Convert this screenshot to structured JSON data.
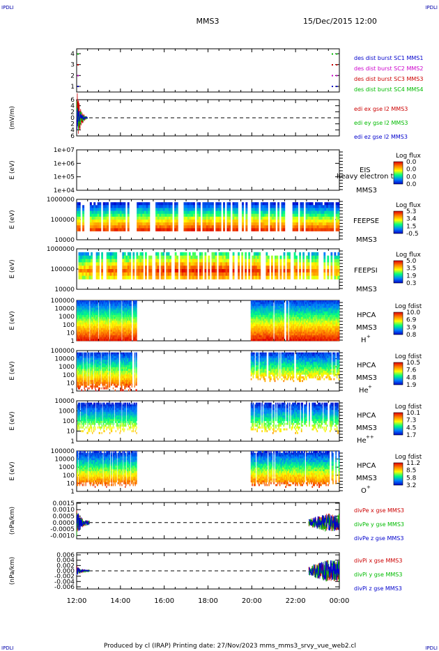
{
  "header": {
    "corner_tl": "IPDLI",
    "corner_tr": "IPDLI",
    "corner_bl": "IPDLI",
    "corner_br": "IPDLI",
    "spacecraft": "MMS3",
    "datetime": "15/Dec/2015 12:00"
  },
  "footer": {
    "text": "Produced by cl (IRAP)   Printing date: 27/Nov/2023   mms_mms3_srvy_vue_web2.cl"
  },
  "colors": {
    "mms1": "#0000cc",
    "mms2": "#cc00cc",
    "mms3": "#cc0000",
    "mms4": "#00bb00",
    "x": "#cc0000",
    "y": "#00bb00",
    "z": "#0000cc"
  },
  "chart_data": [
    {
      "type": "scatter",
      "panel": "des-dist-burst",
      "ylim": [
        0.5,
        4.5
      ],
      "yticks": [
        "1",
        "2",
        "3",
        "4"
      ],
      "legend": [
        "des dist burst SC1 MMS1",
        "des dist burst SC2 MMS2",
        "des dist burst SC3 MMS3",
        "des dist burst SC4 MMS4"
      ],
      "series": [
        {
          "name": "des dist burst SC1 MMS1",
          "y": 1,
          "x_hours": [
            12.03,
            23.65,
            23.85
          ]
        },
        {
          "name": "des dist burst SC2 MMS2",
          "y": 2,
          "x_hours": [
            12.03,
            23.65,
            23.85
          ]
        },
        {
          "name": "des dist burst SC3 MMS3",
          "y": 3,
          "x_hours": [
            12.03,
            23.65,
            23.85
          ]
        },
        {
          "name": "des dist burst SC4 MMS4",
          "y": 4,
          "x_hours": [
            12.03,
            23.65,
            23.85
          ]
        }
      ]
    },
    {
      "type": "line",
      "panel": "edi-e",
      "ylabel": "(mV/m)",
      "ylim": [
        -6,
        6
      ],
      "yticks": [
        "6",
        "4",
        "2",
        "0",
        "2",
        "4",
        "6"
      ],
      "legend": [
        "edi ex gse l2 MMS3",
        "edi ey gse l2 MMS3",
        "edi ez gse l2 MMS3"
      ],
      "x_range_hours": [
        12.0,
        12.5
      ],
      "amplitude": {
        "ex": 5.5,
        "ey": 4.5,
        "ez": 2.5
      }
    },
    {
      "type": "heatmap",
      "panel": "eis",
      "ylabel": "E (eV)",
      "yticks": [
        "1e+07",
        "1e+06",
        "1e+05",
        "1e+04"
      ],
      "labels": [
        "EIS",
        "heavy electron to",
        "MMS3"
      ],
      "colorbar": {
        "title": "Log flux",
        "ticks": [
          "0.0",
          "0.0",
          "0.0",
          "0.0"
        ]
      }
    },
    {
      "type": "heatmap",
      "panel": "feeps-e",
      "ylabel": "E (eV)",
      "yticks": [
        "1000000",
        "100000",
        "10000"
      ],
      "labels": [
        "FEEPSE",
        "MMS3"
      ],
      "colorbar": {
        "title": "Log flux",
        "ticks": [
          "5.3",
          "3.4",
          "1.5",
          "-0.5"
        ]
      },
      "x_range_hours": [
        12.0,
        24.0
      ]
    },
    {
      "type": "heatmap",
      "panel": "feeps-i",
      "ylabel": "E (eV)",
      "yticks": [
        "1000000",
        "100000",
        "10000"
      ],
      "labels": [
        "FEEPSI",
        "MMS3"
      ],
      "colorbar": {
        "title": "Log flux",
        "ticks": [
          "5.0",
          "3.5",
          "1.9",
          "0.3"
        ]
      },
      "x_range_hours": [
        12.0,
        24.0
      ]
    },
    {
      "type": "heatmap",
      "panel": "hpca-h",
      "ylabel": "E (eV)",
      "yticks": [
        "100000",
        "10000",
        "1000",
        "100",
        "10",
        "1"
      ],
      "labels": [
        "HPCA",
        "MMS3",
        "H",
        "+"
      ],
      "colorbar": {
        "title": "Log fdist",
        "ticks": [
          "10.0",
          "6.9",
          "3.9",
          "0.8"
        ]
      },
      "intervals_hours": [
        [
          12.0,
          14.75
        ],
        [
          19.95,
          24.0
        ]
      ]
    },
    {
      "type": "heatmap",
      "panel": "hpca-he",
      "ylabel": "E (eV)",
      "yticks": [
        "100000",
        "10000",
        "1000",
        "100",
        "10",
        "1"
      ],
      "labels": [
        "HPCA",
        "MMS3",
        "He",
        "+"
      ],
      "colorbar": {
        "title": "Log fdist",
        "ticks": [
          "10.5",
          "7.6",
          "4.8",
          "1.9"
        ]
      },
      "intervals_hours": [
        [
          12.0,
          14.75
        ],
        [
          19.95,
          24.0
        ]
      ]
    },
    {
      "type": "heatmap",
      "panel": "hpca-he2",
      "ylabel": "E (eV)",
      "yticks": [
        "10000",
        "1000",
        "100",
        "10",
        "1"
      ],
      "labels": [
        "HPCA",
        "MMS3",
        "He",
        "++"
      ],
      "colorbar": {
        "title": "Log fdist",
        "ticks": [
          "10.1",
          "7.3",
          "4.5",
          "1.7"
        ]
      },
      "intervals_hours": [
        [
          12.0,
          14.75
        ],
        [
          19.95,
          24.0
        ]
      ]
    },
    {
      "type": "heatmap",
      "panel": "hpca-o",
      "ylabel": "E (eV)",
      "yticks": [
        "100000",
        "10000",
        "1000",
        "100",
        "10",
        "1"
      ],
      "labels": [
        "HPCA",
        "MMS3",
        "O",
        "+"
      ],
      "colorbar": {
        "title": "Log fdist",
        "ticks": [
          "11.2",
          "8.5",
          "5.8",
          "3.2"
        ]
      },
      "intervals_hours": [
        [
          12.0,
          14.75
        ],
        [
          19.95,
          24.0
        ]
      ]
    },
    {
      "type": "line",
      "panel": "div-pe",
      "ylabel": "(nPa/km)",
      "ylim": [
        -0.00125,
        0.00155
      ],
      "yticks": [
        "0.0015",
        "0.0010",
        "0.0005",
        "0.0000",
        "-0.0005",
        "-0.0010"
      ],
      "legend": [
        "divPe x gse MMS3",
        "divPe y gse MMS3",
        "divPe z gse MMS3"
      ],
      "intervals_hours": [
        [
          12.0,
          12.6
        ],
        [
          22.6,
          24.0
        ]
      ],
      "amplitude_early": 0.0011,
      "amplitude_late": 0.0007
    },
    {
      "type": "line",
      "panel": "div-pi",
      "ylabel": "(nPa/km)",
      "ylim": [
        -0.0068,
        0.0068
      ],
      "yticks": [
        "0.006",
        "0.004",
        "0.002",
        "0.000",
        "-0.002",
        "-0.004",
        "-0.006"
      ],
      "legend": [
        "divPi x gse MMS3",
        "divPi y gse MMS3",
        "divPi z gse MMS3"
      ],
      "intervals_hours": [
        [
          12.0,
          12.6
        ],
        [
          22.6,
          24.0
        ]
      ],
      "amplitude_early": 0.002,
      "amplitude_late": 0.004
    }
  ],
  "xaxis": {
    "range_hours": [
      12.0,
      24.0
    ],
    "ticks": [
      "12:00",
      "14:00",
      "16:00",
      "18:00",
      "20:00",
      "22:00",
      "00:00"
    ]
  }
}
